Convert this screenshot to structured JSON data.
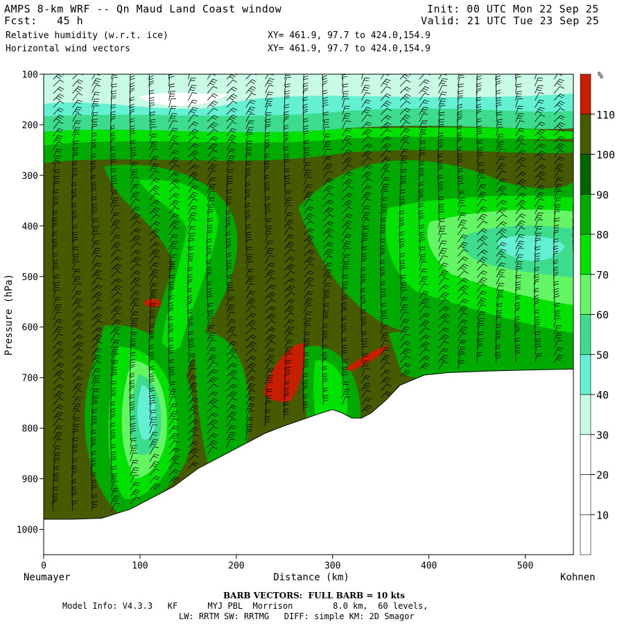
{
  "header": {
    "title": "AMPS 8-km WRF -- Qn Maud Land Coast window",
    "fcst_label": "Fcst:",
    "fcst_value": "45 h",
    "init": "Init: 00 UTC Mon 22 Sep 25",
    "valid": "Valid: 21 UTC Tue 23 Sep 25",
    "field1": "Relative humidity (w.r.t. ice)",
    "field2": "Horizontal wind vectors",
    "xy1": "XY= 461.9, 97.7 to 424.0,154.9",
    "xy2": "XY= 461.9, 97.7 to 424.0,154.9"
  },
  "chart_data": {
    "type": "heatmap",
    "title": "Relative humidity (w.r.t. ice) cross-section with horizontal wind barbs",
    "xlabel": "Distance (km)",
    "ylabel": "Pressure (hPa)",
    "xlim": [
      0,
      550
    ],
    "ylim": [
      1050,
      100
    ],
    "x_ticks": [
      0,
      100,
      200,
      300,
      400,
      500
    ],
    "y_ticks": [
      100,
      200,
      300,
      400,
      500,
      600,
      700,
      800,
      900,
      1000
    ],
    "left_endpoint": "Neumayer",
    "right_endpoint": "Kohnen",
    "colorbar": {
      "unit": "%",
      "levels": [
        10,
        20,
        30,
        40,
        50,
        60,
        70,
        80,
        90,
        100,
        110
      ],
      "colors": [
        "#ffffff",
        "#ffffff",
        "#ffffff",
        "#c8fae6",
        "#64f0d2",
        "#3cdc8c",
        "#64f564",
        "#00e100",
        "#00aa00",
        "#006400",
        "#465a00",
        "#c81e00"
      ]
    },
    "terrain_surface_hPa": {
      "x": [
        0,
        30,
        60,
        90,
        110,
        135,
        160,
        190,
        215,
        230,
        250,
        270,
        285,
        300,
        310,
        320,
        330,
        340,
        355,
        370,
        395,
        420,
        460,
        500,
        550
      ],
      "p": [
        980,
        980,
        978,
        960,
        940,
        915,
        880,
        850,
        825,
        810,
        795,
        782,
        772,
        763,
        770,
        780,
        780,
        770,
        745,
        715,
        695,
        690,
        687,
        685,
        683
      ]
    },
    "barb_note": "BARB VECTORS: FULL BARB = 10 kts"
  },
  "footer": {
    "barb_text": "BARB VECTORS:  FULL BARB = 10 kts",
    "model_line1": "Model Info: V4.3.3   KF      MYJ PBL  Morrison        8.0 km,  60 levels,",
    "model_line2": "LW: RRTM SW: RRTMG   DIFF: simple KM: 2D Smagor"
  }
}
